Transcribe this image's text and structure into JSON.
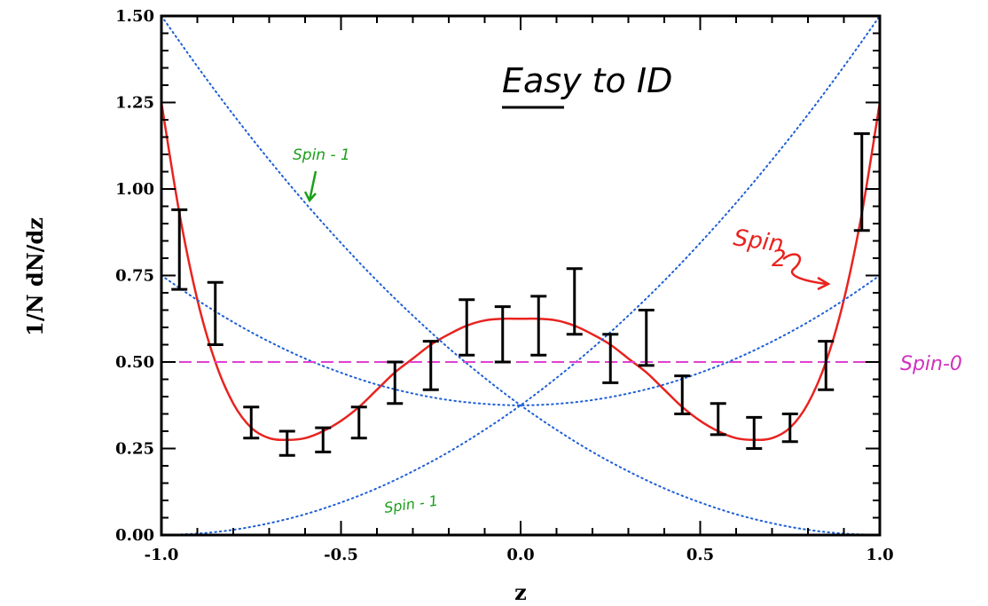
{
  "chart_data": {
    "type": "line",
    "title": "",
    "xlabel": "z",
    "ylabel": "1/N dN/dz",
    "xlim": [
      -1.0,
      1.0
    ],
    "ylim": [
      0.0,
      1.5
    ],
    "x_ticks": [
      "-1.0",
      "-0.5",
      "0.0",
      "0.5",
      "1.0"
    ],
    "y_ticks": [
      "0.00",
      "0.25",
      "0.50",
      "0.75",
      "1.00",
      "1.25",
      "1.50"
    ],
    "grid": false,
    "colors": {
      "spin2_fit": "#e8231f",
      "spin1": "#1f5fd6",
      "spin0": "#e040d0",
      "error_bars": "#000000",
      "annot_spin1": "#1aa01a",
      "annot_spin2": "#e8231f",
      "annot_spin0": "#d030c0",
      "annot_title": "#000000"
    },
    "series": [
      {
        "name": "Spin-2",
        "style": "solid",
        "x": [
          -1.0,
          -0.95,
          -0.9,
          -0.85,
          -0.8,
          -0.75,
          -0.7,
          -0.65,
          -0.6,
          -0.55,
          -0.5,
          -0.45,
          -0.4,
          -0.35,
          -0.3,
          -0.25,
          -0.2,
          -0.15,
          -0.1,
          -0.05,
          0.0,
          0.05,
          0.1,
          0.15,
          0.2,
          0.25,
          0.3,
          0.35,
          0.4,
          0.45,
          0.5,
          0.55,
          0.6,
          0.65,
          0.7,
          0.75,
          0.8,
          0.85,
          0.9,
          0.95,
          1.0
        ],
        "y": [
          1.25,
          0.93,
          0.68,
          0.5,
          0.38,
          0.31,
          0.28,
          0.275,
          0.28,
          0.3,
          0.33,
          0.37,
          0.42,
          0.47,
          0.51,
          0.55,
          0.58,
          0.605,
          0.62,
          0.625,
          0.625,
          0.625,
          0.62,
          0.605,
          0.58,
          0.55,
          0.51,
          0.47,
          0.42,
          0.37,
          0.33,
          0.3,
          0.28,
          0.275,
          0.28,
          0.31,
          0.38,
          0.5,
          0.68,
          0.93,
          1.25
        ]
      },
      {
        "name": "Spin-1 (a)",
        "style": "dotted",
        "x": [
          -1.0,
          -0.9,
          -0.8,
          -0.7,
          -0.6,
          -0.5,
          -0.4,
          -0.3,
          -0.2,
          -0.1,
          0.0,
          0.1,
          0.2,
          0.3,
          0.4,
          0.5,
          0.6,
          0.7,
          0.8,
          0.9,
          1.0
        ],
        "y": [
          1.5,
          1.354,
          1.215,
          1.084,
          0.96,
          0.844,
          0.735,
          0.634,
          0.54,
          0.454,
          0.375,
          0.304,
          0.24,
          0.184,
          0.135,
          0.094,
          0.06,
          0.034,
          0.015,
          0.004,
          0.0
        ]
      },
      {
        "name": "Spin-1 (b)",
        "style": "dotted",
        "x": [
          -1.0,
          -0.9,
          -0.8,
          -0.7,
          -0.6,
          -0.5,
          -0.4,
          -0.3,
          -0.2,
          -0.1,
          0.0,
          0.1,
          0.2,
          0.3,
          0.4,
          0.5,
          0.6,
          0.7,
          0.8,
          0.9,
          1.0
        ],
        "y": [
          0.0,
          0.004,
          0.015,
          0.034,
          0.06,
          0.094,
          0.135,
          0.184,
          0.24,
          0.304,
          0.375,
          0.454,
          0.54,
          0.634,
          0.735,
          0.844,
          0.96,
          1.084,
          1.215,
          1.354,
          1.5
        ]
      },
      {
        "name": "Spin-1 (c)",
        "style": "dotted",
        "x": [
          -1.0,
          -0.9,
          -0.8,
          -0.7,
          -0.6,
          -0.5,
          -0.4,
          -0.3,
          -0.2,
          -0.1,
          0.0,
          0.1,
          0.2,
          0.3,
          0.4,
          0.5,
          0.6,
          0.7,
          0.8,
          0.9,
          1.0
        ],
        "y": [
          0.75,
          0.679,
          0.615,
          0.559,
          0.51,
          0.469,
          0.435,
          0.409,
          0.39,
          0.379,
          0.375,
          0.379,
          0.39,
          0.409,
          0.435,
          0.469,
          0.51,
          0.559,
          0.615,
          0.679,
          0.75
        ]
      },
      {
        "name": "Spin-0",
        "style": "dashed",
        "x": [
          -1.0,
          1.0
        ],
        "y": [
          0.5,
          0.5
        ]
      }
    ],
    "error_bars": [
      {
        "x": -0.95,
        "low": 0.71,
        "high": 0.94
      },
      {
        "x": -0.85,
        "low": 0.55,
        "high": 0.73
      },
      {
        "x": -0.75,
        "low": 0.28,
        "high": 0.37
      },
      {
        "x": -0.65,
        "low": 0.23,
        "high": 0.3
      },
      {
        "x": -0.55,
        "low": 0.24,
        "high": 0.31
      },
      {
        "x": -0.45,
        "low": 0.28,
        "high": 0.37
      },
      {
        "x": -0.35,
        "low": 0.38,
        "high": 0.5
      },
      {
        "x": -0.25,
        "low": 0.42,
        "high": 0.56
      },
      {
        "x": -0.15,
        "low": 0.52,
        "high": 0.68
      },
      {
        "x": -0.05,
        "low": 0.5,
        "high": 0.66
      },
      {
        "x": 0.05,
        "low": 0.52,
        "high": 0.69
      },
      {
        "x": 0.15,
        "low": 0.58,
        "high": 0.77
      },
      {
        "x": 0.25,
        "low": 0.44,
        "high": 0.58
      },
      {
        "x": 0.35,
        "low": 0.49,
        "high": 0.65
      },
      {
        "x": 0.45,
        "low": 0.35,
        "high": 0.46
      },
      {
        "x": 0.55,
        "low": 0.29,
        "high": 0.38
      },
      {
        "x": 0.65,
        "low": 0.25,
        "high": 0.34
      },
      {
        "x": 0.75,
        "low": 0.27,
        "high": 0.35
      },
      {
        "x": 0.85,
        "low": 0.42,
        "high": 0.56
      },
      {
        "x": 0.95,
        "low": 0.88,
        "high": 1.16
      }
    ],
    "annotations": {
      "title_note": "Easy to ID",
      "spin1_upper": "Spin - 1",
      "spin1_lower": "Spin - 1",
      "spin2_line1": "Spin",
      "spin2_line2": "2",
      "spin0": "Spin-0"
    }
  }
}
